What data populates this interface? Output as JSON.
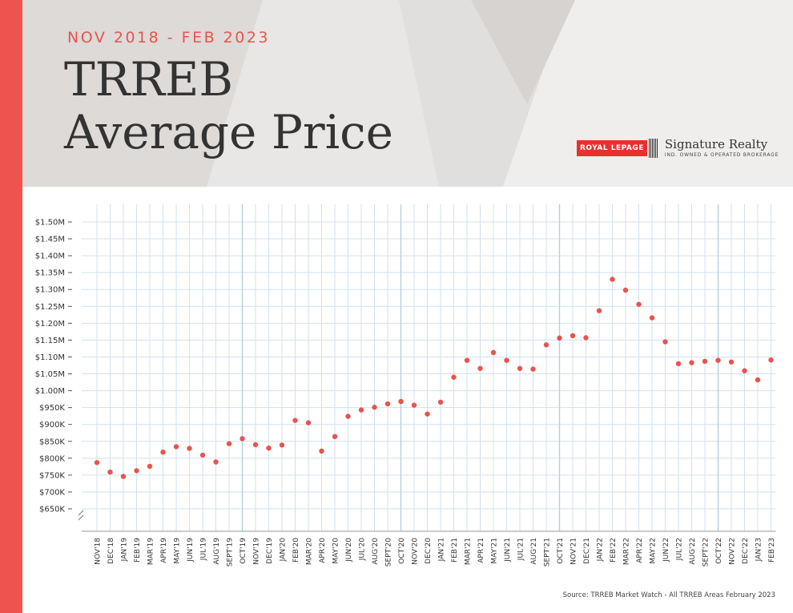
{
  "header": {
    "subtitle": "NOV 2018 - FEB 2023",
    "title_line1": "TRREB",
    "title_line2": "Average Price"
  },
  "brand": {
    "logo_box": "ROYAL LEPAGE",
    "name": "Signature Realty",
    "tagline": "IND. OWNED & OPERATED BROKERAGE"
  },
  "source": "Source: TRREB Market Watch - All TRREB Areas February 2023",
  "colors": {
    "accent": "#ef5350",
    "point": "#e8544d",
    "grid": "#d2e1ee",
    "grid_major": "#b5cde3",
    "header_bg": "#e5e3e1",
    "title": "#333333"
  },
  "chart_data": {
    "type": "scatter",
    "title": "TRREB Average Price",
    "subtitle": "NOV 2018 - FEB 2023",
    "ylim": [
      650000,
      1500000
    ],
    "y_ticks": [
      {
        "value": 1500000,
        "label": "$1.50M"
      },
      {
        "value": 1450000,
        "label": "$1.45M"
      },
      {
        "value": 1400000,
        "label": "$1.40M"
      },
      {
        "value": 1350000,
        "label": "$1.35M"
      },
      {
        "value": 1300000,
        "label": "$1.30M"
      },
      {
        "value": 1250000,
        "label": "$1.25M"
      },
      {
        "value": 1200000,
        "label": "$1.20M"
      },
      {
        "value": 1150000,
        "label": "$1.15M"
      },
      {
        "value": 1100000,
        "label": "$1.10M"
      },
      {
        "value": 1050000,
        "label": "$1.05M"
      },
      {
        "value": 1000000,
        "label": "$1.00M"
      },
      {
        "value": 950000,
        "label": "$950K"
      },
      {
        "value": 900000,
        "label": "$900K"
      },
      {
        "value": 850000,
        "label": "$850K"
      },
      {
        "value": 800000,
        "label": "$800K"
      },
      {
        "value": 750000,
        "label": "$750K"
      },
      {
        "value": 700000,
        "label": "$700K"
      },
      {
        "value": 650000,
        "label": "$650K"
      }
    ],
    "categories": [
      "NOV'18",
      "DEC'18",
      "JAN'19",
      "FEB'19",
      "MAR'19",
      "APR'19",
      "MAY'19",
      "JUN'19",
      "JUL'19",
      "AUG'19",
      "SEPT'19",
      "OCT'19",
      "NOV'19",
      "DEC'19",
      "JAN'20",
      "FEB'20",
      "MAR'20",
      "APR'20",
      "MAY'20",
      "JUN'20",
      "JUL'20",
      "AUG'20",
      "SEPT'20",
      "OCT'20",
      "NOV'20",
      "DEC'20",
      "JAN'21",
      "FEB'21",
      "MAR'21",
      "APR'21",
      "MAY'21",
      "JUN'21",
      "JUL'21",
      "AUG'21",
      "SEPT'21",
      "OCT'21",
      "NOV'21",
      "DEC'21",
      "JAN'22",
      "FEB'22",
      "MAR'22",
      "APR'22",
      "MAY'22",
      "JUN'22",
      "JUL'22",
      "AUG'22",
      "SEPT'22",
      "OCT'22",
      "NOV'22",
      "DEC'22",
      "JAN'23",
      "FEB'23"
    ],
    "values": [
      787000,
      759000,
      746000,
      763000,
      776000,
      818000,
      834000,
      829000,
      809000,
      789000,
      843000,
      858000,
      840000,
      830000,
      839000,
      912000,
      905000,
      821000,
      864000,
      924000,
      943000,
      951000,
      961000,
      968000,
      957000,
      931000,
      966000,
      1040000,
      1090000,
      1066000,
      1113000,
      1090000,
      1066000,
      1064000,
      1136000,
      1156000,
      1163000,
      1157000,
      1237000,
      1330000,
      1298000,
      1256000,
      1216000,
      1145000,
      1080000,
      1083000,
      1087000,
      1090000,
      1085000,
      1059000,
      1032000,
      1091000
    ],
    "grid": true,
    "axis_break": true
  }
}
